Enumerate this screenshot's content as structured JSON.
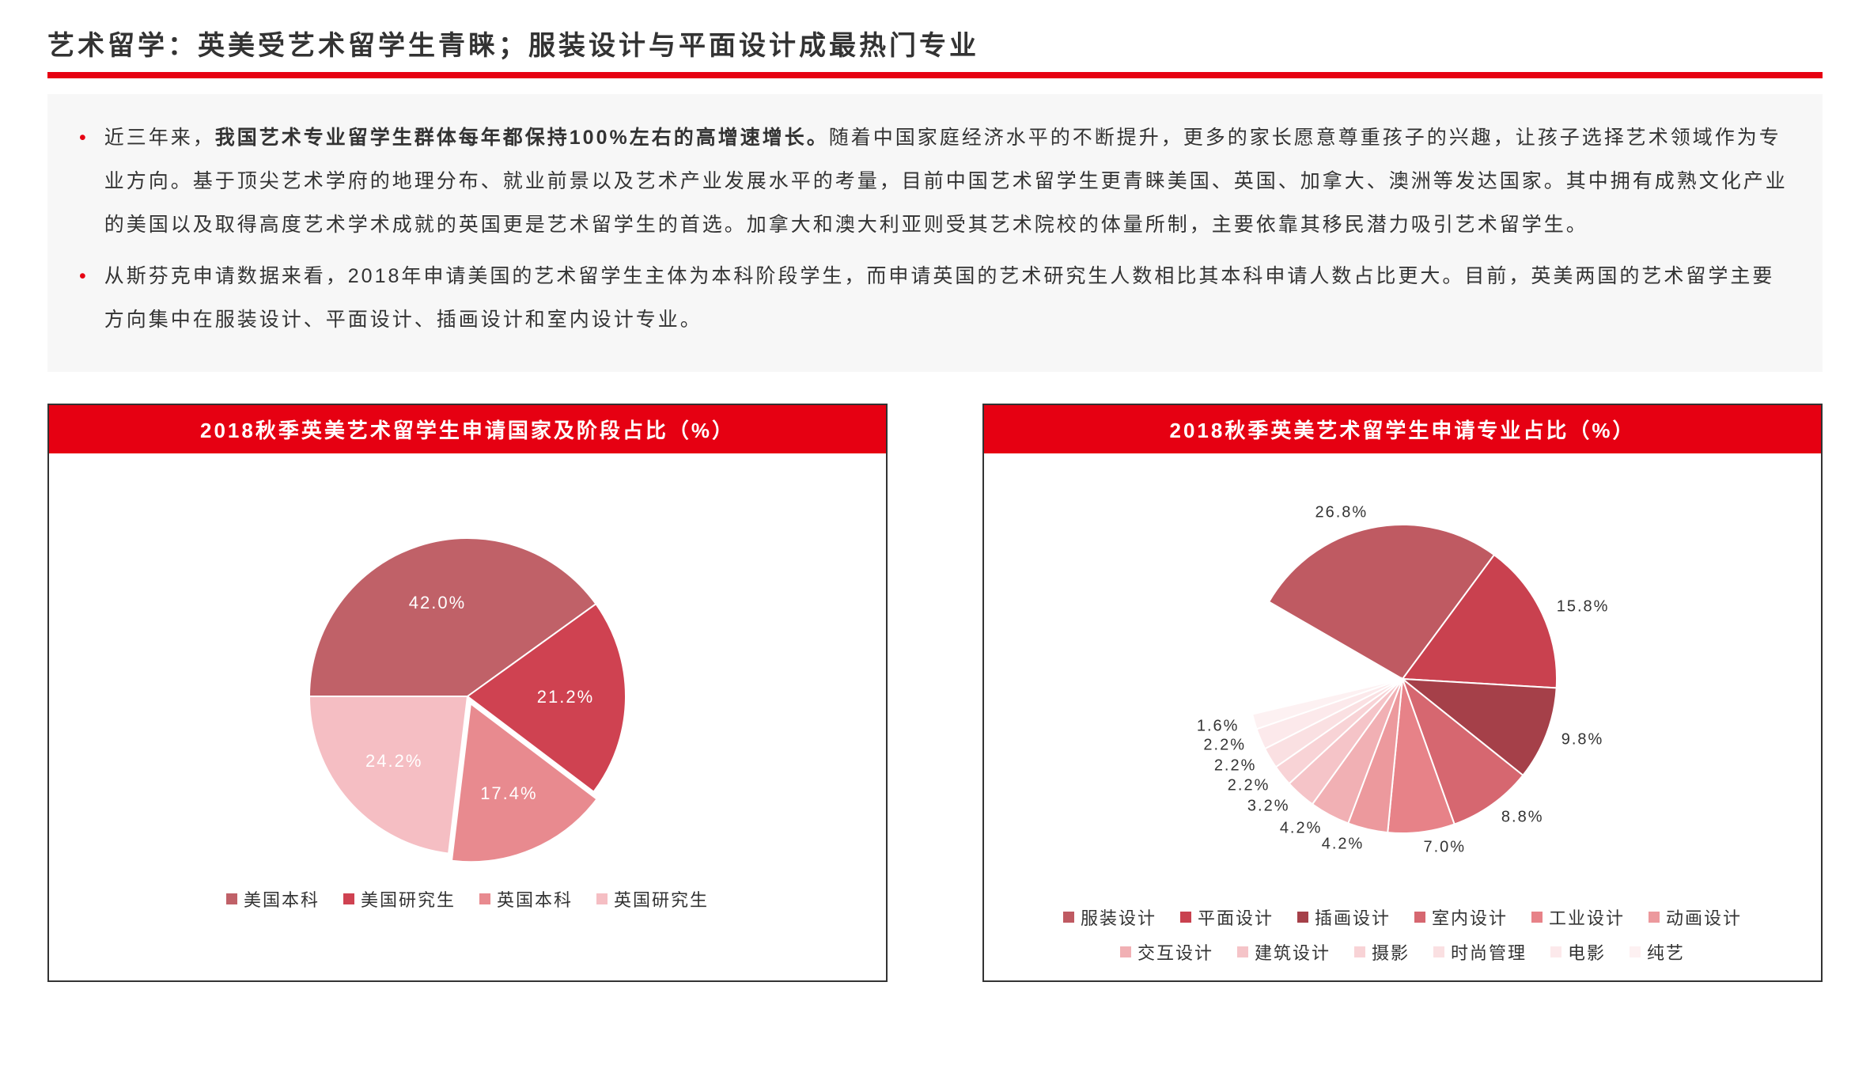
{
  "header": {
    "title": "艺术留学：英美受艺术留学生青睐；服装设计与平面设计成最热门专业",
    "underline_color": "#e60012"
  },
  "text_box": {
    "background": "#f7f7f7",
    "bullet_color": "#e60012",
    "bullets": [
      {
        "pre": "近三年来，",
        "bold": "我国艺术专业留学生群体每年都保持100%左右的高增速增长。",
        "post": "随着中国家庭经济水平的不断提升，更多的家长愿意尊重孩子的兴趣，让孩子选择艺术领域作为专业方向。基于顶尖艺术学府的地理分布、就业前景以及艺术产业发展水平的考量，目前中国艺术留学生更青睐美国、英国、加拿大、澳洲等发达国家。其中拥有成熟文化产业的美国以及取得高度艺术学术成就的英国更是艺术留学生的首选。加拿大和澳大利亚则受其艺术院校的体量所制，主要依靠其移民潜力吸引艺术留学生。"
      },
      {
        "pre": "从斯芬克申请数据来看，2018年申请美国的艺术留学生主体为本科阶段学生，而申请英国的艺术研究生人数相比其本科申请人数占比更大。目前，英美两国的艺术留学主要方向集中在服装设计、平面设计、插画设计和室内设计专业。",
        "bold": "",
        "post": ""
      }
    ]
  },
  "chart1": {
    "type": "pie",
    "title": "2018秋季英美艺术留学生申请国家及阶段占比（%）",
    "title_bg": "#e60012",
    "title_color": "#ffffff",
    "radius": 200,
    "explode": [
      0,
      0,
      10,
      0
    ],
    "start_angle": -90,
    "slices": [
      {
        "label": "美国本科",
        "value": 42.0,
        "display": "42.0%",
        "color": "#c06168"
      },
      {
        "label": "美国研究生",
        "value": 21.2,
        "display": "21.2%",
        "color": "#cf4251"
      },
      {
        "label": "英国本科",
        "value": 17.4,
        "display": "17.4%",
        "color": "#e88a8f"
      },
      {
        "label": "英国研究生",
        "value": 24.2,
        "display": "24.2%",
        "color": "#f5bec3"
      }
    ],
    "label_fontsize": 22,
    "label_color_dark": "#333333",
    "label_color_light": "#ffffff"
  },
  "chart2": {
    "type": "pie",
    "title": "2018秋季英美艺术留学生申请专业占比（%）",
    "title_bg": "#e60012",
    "title_color": "#ffffff",
    "radius": 195,
    "start_angle": -60,
    "slices": [
      {
        "label": "服装设计",
        "value": 26.8,
        "display": "26.8%",
        "color": "#bf5a62"
      },
      {
        "label": "平面设计",
        "value": 15.8,
        "display": "15.8%",
        "color": "#c9414f"
      },
      {
        "label": "插画设计",
        "value": 9.8,
        "display": "9.8%",
        "color": "#a54049"
      },
      {
        "label": "室内设计",
        "value": 8.8,
        "display": "8.8%",
        "color": "#d66770"
      },
      {
        "label": "工业设计",
        "value": 7.0,
        "display": "7.0%",
        "color": "#e78288"
      },
      {
        "label": "动画设计",
        "value": 4.2,
        "display": "4.2%",
        "color": "#ec999d"
      },
      {
        "label": "交互设计",
        "value": 4.2,
        "display": "4.2%",
        "color": "#f1b0b4"
      },
      {
        "label": "建筑设计",
        "value": 3.2,
        "display": "3.2%",
        "color": "#f5c4c8"
      },
      {
        "label": "摄影",
        "value": 2.2,
        "display": "2.2%",
        "color": "#f8d3d6"
      },
      {
        "label": "时尚管理",
        "value": 2.2,
        "display": "2.2%",
        "color": "#fae0e2"
      },
      {
        "label": "电影",
        "value": 2.2,
        "display": "2.2%",
        "color": "#fce9eb"
      },
      {
        "label": "纯艺",
        "value": 1.6,
        "display": "1.6%",
        "color": "#fdf1f2"
      }
    ],
    "remainder_color": "#ffffff",
    "label_fontsize": 20,
    "label_color": "#333333"
  }
}
